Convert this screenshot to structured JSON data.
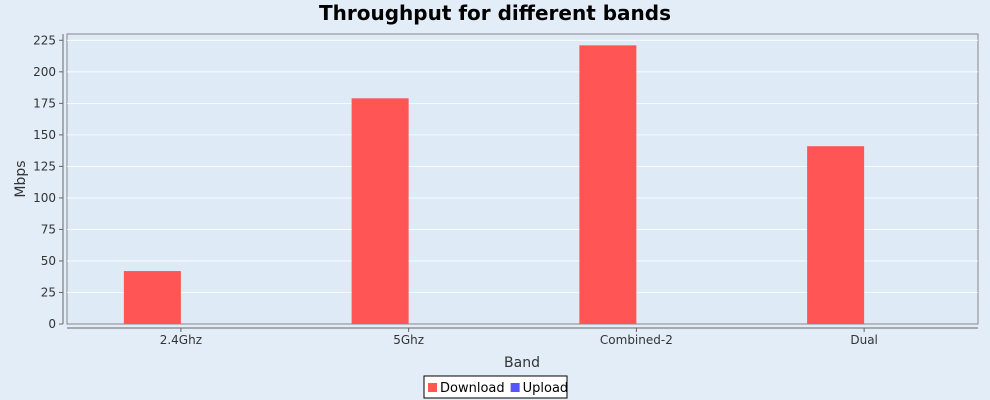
{
  "chart_data": {
    "type": "bar",
    "title": "Throughput for different bands",
    "xlabel": "Band",
    "ylabel": "Mbps",
    "categories": [
      "2.4Ghz",
      "5Ghz",
      "Combined-2",
      "Dual"
    ],
    "series": [
      {
        "name": "Download",
        "color": "#ff5555",
        "values": [
          42,
          179,
          221,
          141
        ]
      },
      {
        "name": "Upload",
        "color": "#5555ff",
        "values": [
          0,
          0,
          0,
          0
        ]
      }
    ],
    "ylim": [
      0,
      230
    ],
    "yticks": [
      0,
      25,
      50,
      75,
      100,
      125,
      150,
      175,
      200,
      225
    ],
    "grid": true,
    "legend_position": "bottom-center",
    "colors": {
      "background": "#e3edf8",
      "plot_background": "#deeaf6",
      "grid": "#ffffff"
    }
  }
}
